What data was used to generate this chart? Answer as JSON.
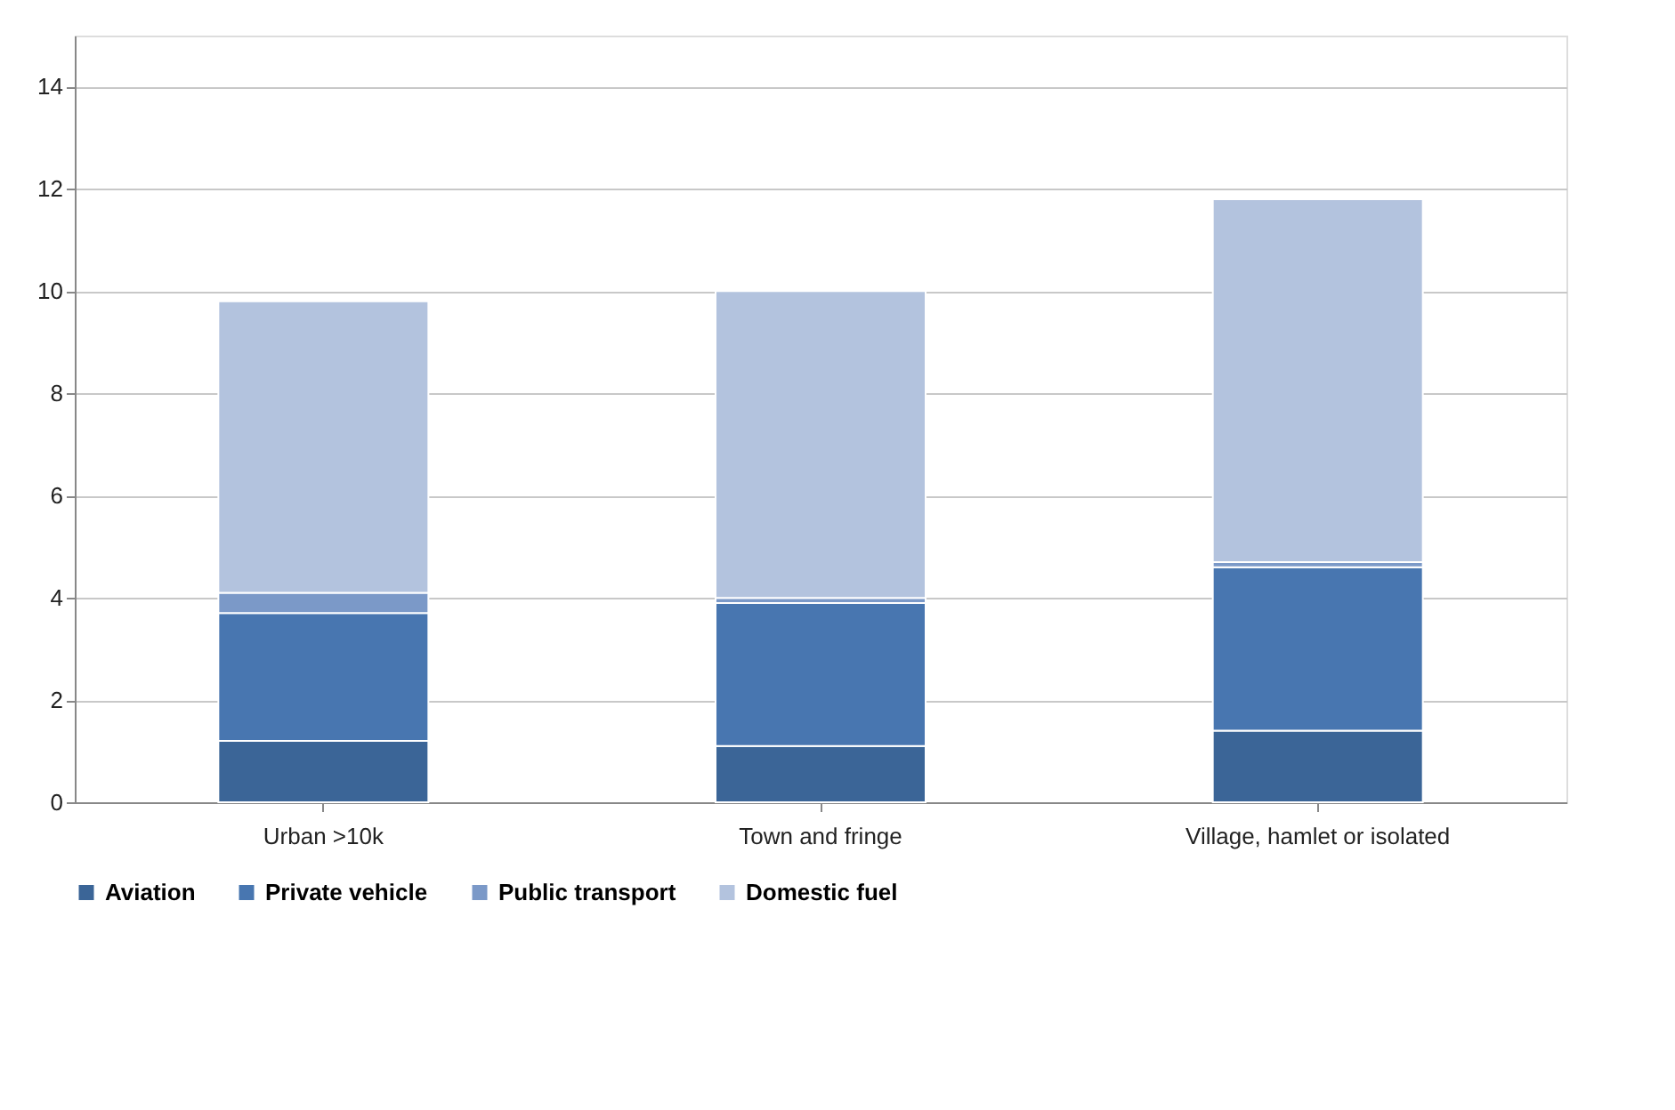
{
  "chart_data": {
    "type": "bar",
    "stacked": true,
    "categories": [
      "Urban >10k",
      "Town and fringe",
      "Village, hamlet or isolated"
    ],
    "series": [
      {
        "name": "Aviation",
        "color": "#3b6597",
        "values": [
          1.2,
          1.1,
          1.4
        ]
      },
      {
        "name": "Private vehicle",
        "color": "#4876b0",
        "values": [
          2.5,
          2.8,
          3.2
        ]
      },
      {
        "name": "Public transport",
        "color": "#7b99c8",
        "values": [
          0.4,
          0.1,
          0.1
        ]
      },
      {
        "name": "Domestic fuel",
        "color": "#b3c3de",
        "values": [
          5.7,
          6.0,
          7.1
        ]
      }
    ],
    "ylim": [
      0,
      15
    ],
    "yticks": [
      0,
      2,
      4,
      6,
      8,
      10,
      12,
      14
    ],
    "grid": "y",
    "legend": "bottom"
  }
}
